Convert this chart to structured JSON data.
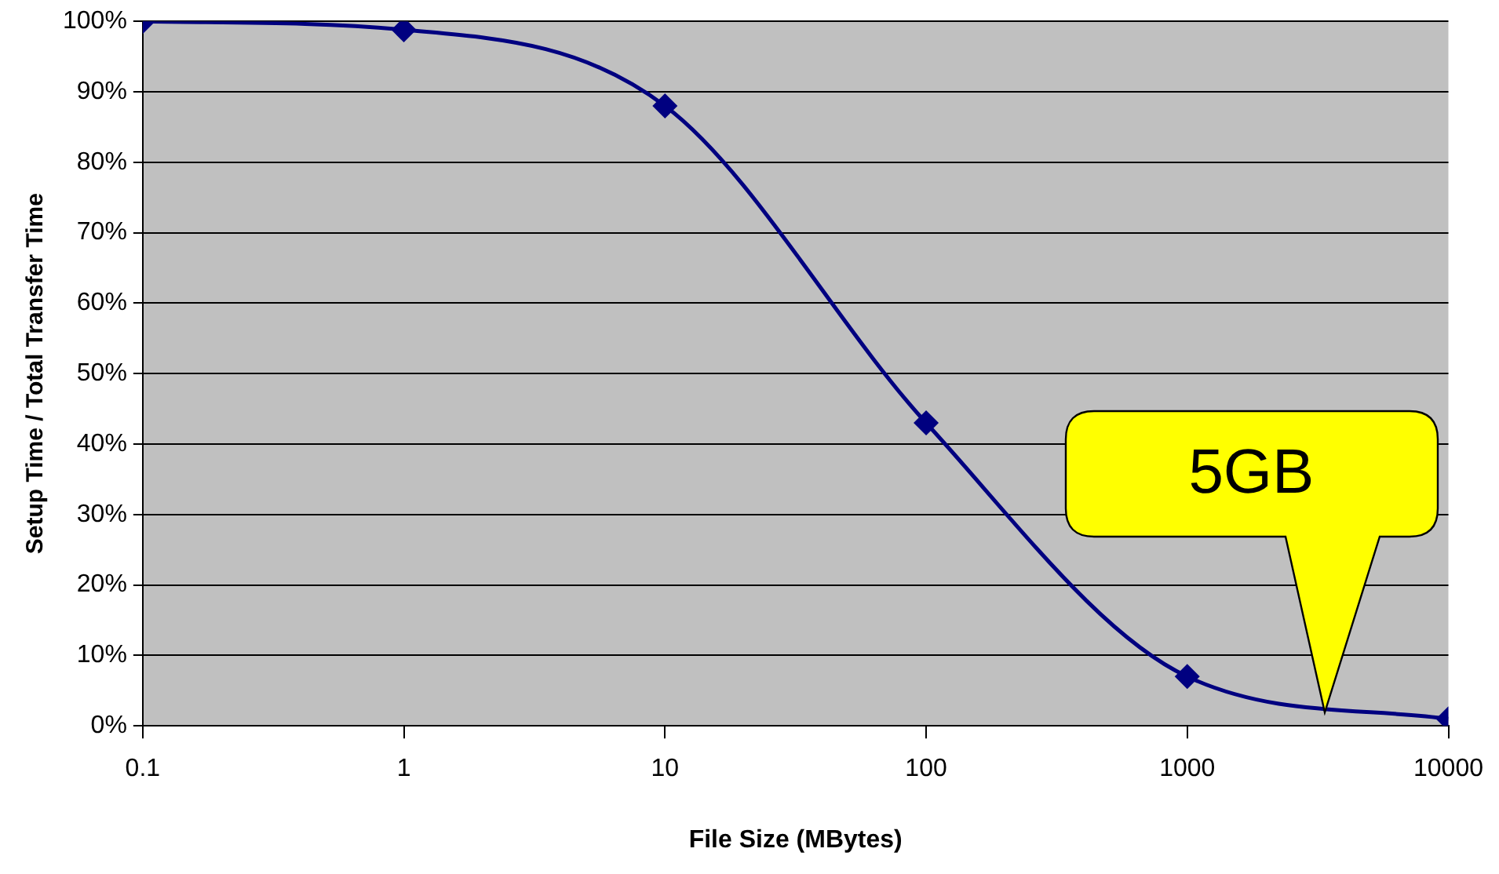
{
  "chart_data": {
    "type": "line",
    "xlabel": "File Size (MBytes)",
    "ylabel": "Setup Time / Total Transfer Time",
    "x": [
      0.1,
      1,
      10,
      100,
      1000,
      10000
    ],
    "series": [
      {
        "color": "#000080",
        "values": [
          100,
          98.8,
          88,
          43,
          7,
          1
        ]
      }
    ],
    "log": "x",
    "xlim": [
      0.1,
      10000
    ],
    "xticks": [
      0.1,
      1,
      10,
      100,
      1000,
      10000
    ],
    "ylim": [
      0,
      100
    ],
    "yticks": [
      {
        "value": 0,
        "label": "0%"
      },
      {
        "value": 10,
        "label": "10%"
      },
      {
        "value": 20,
        "label": "20%"
      },
      {
        "value": 30,
        "label": "30%"
      },
      {
        "value": 40,
        "label": "40%"
      },
      {
        "value": 50,
        "label": "50%"
      },
      {
        "value": 60,
        "label": "60%"
      },
      {
        "value": 70,
        "label": "70%"
      },
      {
        "value": 80,
        "label": "80%"
      },
      {
        "value": 90,
        "label": "90%"
      },
      {
        "value": 100,
        "label": "100%"
      }
    ],
    "grid": "y",
    "legend": false,
    "marker": "diamond",
    "line_style": "solid",
    "annotations": [
      "5GB"
    ]
  }
}
